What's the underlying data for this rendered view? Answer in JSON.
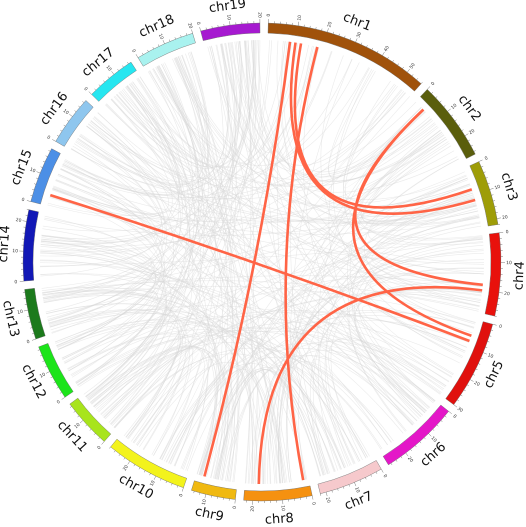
{
  "diagram": {
    "chromosomes": [
      {
        "name": "chr1",
        "length": 56,
        "color": "#A0520B"
      },
      {
        "name": "chr2",
        "length": 27,
        "color": "#5A5E0C"
      },
      {
        "name": "chr3",
        "length": 22,
        "color": "#9E9D08"
      },
      {
        "name": "chr4",
        "length": 28,
        "color": "#E8110C"
      },
      {
        "name": "chr5",
        "length": 30,
        "color": "#E0110E"
      },
      {
        "name": "chr6",
        "length": 27,
        "color": "#E417C8"
      },
      {
        "name": "chr7",
        "length": 22,
        "color": "#F6C9CC"
      },
      {
        "name": "chr8",
        "length": 23,
        "color": "#F59110"
      },
      {
        "name": "chr9",
        "length": 15,
        "color": "#F0B911"
      },
      {
        "name": "chr10",
        "length": 28,
        "color": "#F3F31C"
      },
      {
        "name": "chr11",
        "length": 17,
        "color": "#A8E41C"
      },
      {
        "name": "chr12",
        "length": 19,
        "color": "#1CE41A"
      },
      {
        "name": "chr13",
        "length": 17,
        "color": "#1C7A1C"
      },
      {
        "name": "chr14",
        "length": 24,
        "color": "#1218B6"
      },
      {
        "name": "chr15",
        "length": 19,
        "color": "#4C8FE6"
      },
      {
        "name": "chr16",
        "length": 17,
        "color": "#8EC6EE"
      },
      {
        "name": "chr17",
        "length": 17,
        "color": "#27E6F0"
      },
      {
        "name": "chr18",
        "length": 20,
        "color": "#A9F2EF"
      },
      {
        "name": "chr19",
        "length": 20,
        "color": "#A61AD0"
      }
    ],
    "highlight_color": "#FF6446",
    "background_link_color": "#D9D9D9",
    "highlight_links": [
      {
        "from": "chr1",
        "from_pos": 8,
        "to": "chr9",
        "to_pos": 12
      },
      {
        "from": "chr1",
        "from_pos": 18,
        "to": "chr8",
        "to_pos": 2
      },
      {
        "from": "chr1",
        "from_pos": 12,
        "to": "chr3",
        "to_pos": 8
      },
      {
        "from": "chr1",
        "from_pos": 10,
        "to": "chr3",
        "to_pos": 12
      },
      {
        "from": "chr2",
        "from_pos": 4,
        "to": "chr4",
        "to_pos": 18
      },
      {
        "from": "chr2",
        "from_pos": 4,
        "to": "chr5",
        "to_pos": 6
      },
      {
        "from": "chr4",
        "from_pos": 20,
        "to": "chr8",
        "to_pos": 18
      },
      {
        "from": "chr15",
        "from_pos": 4,
        "to": "chr5",
        "to_pos": 8
      }
    ]
  }
}
